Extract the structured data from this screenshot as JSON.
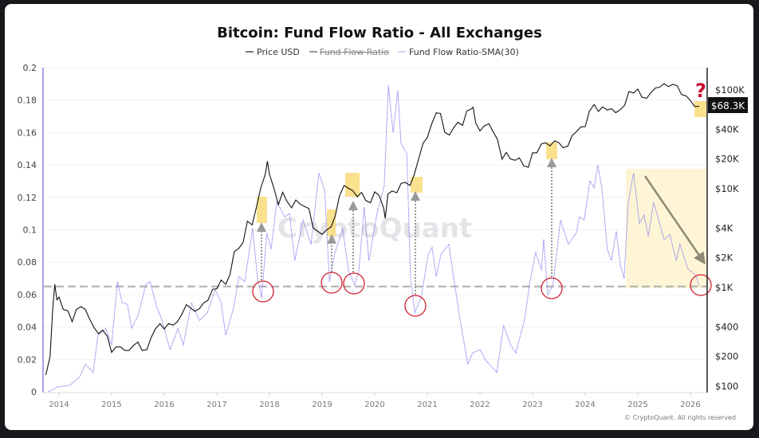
{
  "chart_data": {
    "type": "line",
    "title": "Bitcoin: Fund Flow Ratio - All Exchanges",
    "legend": [
      {
        "name": "Price USD",
        "color": "#222222",
        "hidden": false
      },
      {
        "name": "Fund Flow Ratio",
        "color": "#555555",
        "hidden": true
      },
      {
        "name": "Fund Flow Ratio-SMA(30)",
        "color": "#7b72ea",
        "hidden": false
      }
    ],
    "legend_position": "top-center",
    "watermark": "CryptoQuant",
    "copyright": "© CryptoQuant. All rights reserved",
    "price_label": "$68.3K",
    "annotation_mark": "?",
    "x_ticks": [
      "2014",
      "2015",
      "2016",
      "2017",
      "2018",
      "2019",
      "2020",
      "2021",
      "2022",
      "2023",
      "2024",
      "2025",
      "2026"
    ],
    "y_left": {
      "lim": [
        0,
        0.2
      ],
      "ticks": [
        "0",
        "0.02",
        "0.04",
        "0.06",
        "0.08",
        "0.1",
        "0.12",
        "0.14",
        "0.16",
        "0.18",
        "0.2"
      ]
    },
    "y_right": {
      "scale": "log",
      "ticks": [
        "$100",
        "$200",
        "$400",
        "$1K",
        "$2K",
        "$4K",
        "$10K",
        "$20K",
        "$40K",
        "$100K"
      ],
      "tick_values": [
        100,
        200,
        400,
        1000,
        2000,
        4000,
        10000,
        20000,
        40000,
        100000
      ]
    },
    "threshold_line": 0.065,
    "grid": true,
    "series": [
      {
        "name": "Price USD",
        "axis": "right",
        "points": [
          [
            2013.75,
            130
          ],
          [
            2013.83,
            200
          ],
          [
            2013.88,
            600
          ],
          [
            2013.92,
            1080
          ],
          [
            2013.96,
            750
          ],
          [
            2014.0,
            800
          ],
          [
            2014.08,
            600
          ],
          [
            2014.17,
            580
          ],
          [
            2014.25,
            450
          ],
          [
            2014.33,
            600
          ],
          [
            2014.42,
            640
          ],
          [
            2014.5,
            600
          ],
          [
            2014.58,
            480
          ],
          [
            2014.67,
            390
          ],
          [
            2014.75,
            340
          ],
          [
            2014.83,
            370
          ],
          [
            2014.92,
            320
          ],
          [
            2015.0,
            220
          ],
          [
            2015.08,
            250
          ],
          [
            2015.17,
            250
          ],
          [
            2015.25,
            230
          ],
          [
            2015.33,
            230
          ],
          [
            2015.42,
            260
          ],
          [
            2015.5,
            280
          ],
          [
            2015.58,
            230
          ],
          [
            2015.67,
            235
          ],
          [
            2015.75,
            310
          ],
          [
            2015.83,
            380
          ],
          [
            2015.92,
            430
          ],
          [
            2016.0,
            380
          ],
          [
            2016.08,
            430
          ],
          [
            2016.17,
            415
          ],
          [
            2016.25,
            450
          ],
          [
            2016.33,
            530
          ],
          [
            2016.42,
            670
          ],
          [
            2016.5,
            620
          ],
          [
            2016.58,
            575
          ],
          [
            2016.67,
            610
          ],
          [
            2016.75,
            700
          ],
          [
            2016.83,
            740
          ],
          [
            2016.92,
            960
          ],
          [
            2017.0,
            970
          ],
          [
            2017.08,
            1190
          ],
          [
            2017.17,
            1080
          ],
          [
            2017.25,
            1350
          ],
          [
            2017.33,
            2300
          ],
          [
            2017.42,
            2500
          ],
          [
            2017.5,
            2870
          ],
          [
            2017.58,
            4700
          ],
          [
            2017.67,
            4300
          ],
          [
            2017.75,
            6400
          ],
          [
            2017.83,
            10000
          ],
          [
            2017.92,
            14000
          ],
          [
            2017.96,
            19000
          ],
          [
            2018.0,
            14000
          ],
          [
            2018.08,
            10300
          ],
          [
            2018.17,
            6900
          ],
          [
            2018.25,
            9200
          ],
          [
            2018.33,
            7500
          ],
          [
            2018.42,
            6400
          ],
          [
            2018.5,
            7700
          ],
          [
            2018.58,
            7000
          ],
          [
            2018.67,
            6600
          ],
          [
            2018.75,
            6300
          ],
          [
            2018.83,
            4000
          ],
          [
            2018.92,
            3700
          ],
          [
            2019.0,
            3450
          ],
          [
            2019.08,
            3800
          ],
          [
            2019.17,
            4100
          ],
          [
            2019.25,
            5300
          ],
          [
            2019.33,
            8500
          ],
          [
            2019.42,
            10800
          ],
          [
            2019.5,
            10100
          ],
          [
            2019.58,
            9600
          ],
          [
            2019.67,
            8300
          ],
          [
            2019.75,
            9200
          ],
          [
            2019.83,
            7600
          ],
          [
            2019.92,
            7200
          ],
          [
            2020.0,
            9300
          ],
          [
            2020.08,
            8600
          ],
          [
            2020.17,
            6400
          ],
          [
            2020.2,
            5000
          ],
          [
            2020.25,
            8800
          ],
          [
            2020.33,
            9500
          ],
          [
            2020.42,
            9100
          ],
          [
            2020.5,
            11300
          ],
          [
            2020.58,
            11600
          ],
          [
            2020.67,
            10800
          ],
          [
            2020.75,
            13800
          ],
          [
            2020.83,
            19700
          ],
          [
            2020.92,
            29000
          ],
          [
            2021.0,
            33000
          ],
          [
            2021.08,
            45000
          ],
          [
            2021.17,
            58800
          ],
          [
            2021.25,
            57700
          ],
          [
            2021.33,
            37300
          ],
          [
            2021.42,
            35000
          ],
          [
            2021.5,
            41500
          ],
          [
            2021.58,
            47100
          ],
          [
            2021.67,
            43800
          ],
          [
            2021.75,
            61300
          ],
          [
            2021.83,
            64000
          ],
          [
            2021.87,
            67000
          ],
          [
            2021.92,
            46300
          ],
          [
            2022.0,
            38500
          ],
          [
            2022.08,
            43200
          ],
          [
            2022.17,
            45500
          ],
          [
            2022.25,
            37700
          ],
          [
            2022.33,
            31800
          ],
          [
            2022.42,
            19900
          ],
          [
            2022.5,
            23300
          ],
          [
            2022.58,
            20000
          ],
          [
            2022.67,
            19400
          ],
          [
            2022.75,
            20500
          ],
          [
            2022.83,
            17100
          ],
          [
            2022.92,
            16500
          ],
          [
            2023.0,
            23100
          ],
          [
            2023.08,
            23100
          ],
          [
            2023.17,
            28500
          ],
          [
            2023.25,
            29200
          ],
          [
            2023.33,
            27200
          ],
          [
            2023.42,
            30500
          ],
          [
            2023.5,
            29200
          ],
          [
            2023.58,
            26000
          ],
          [
            2023.67,
            27000
          ],
          [
            2023.75,
            34500
          ],
          [
            2023.83,
            37700
          ],
          [
            2023.92,
            42300
          ],
          [
            2024.0,
            42500
          ],
          [
            2024.08,
            61000
          ],
          [
            2024.17,
            71300
          ],
          [
            2024.25,
            60600
          ],
          [
            2024.33,
            67500
          ],
          [
            2024.42,
            62700
          ],
          [
            2024.5,
            64600
          ],
          [
            2024.58,
            58900
          ],
          [
            2024.67,
            63300
          ],
          [
            2024.75,
            70200
          ],
          [
            2024.83,
            96400
          ],
          [
            2024.92,
            93400
          ],
          [
            2025.0,
            102000
          ],
          [
            2025.08,
            84400
          ],
          [
            2025.17,
            82500
          ],
          [
            2025.25,
            94200
          ],
          [
            2025.33,
            104600
          ],
          [
            2025.42,
            107100
          ],
          [
            2025.5,
            115700
          ],
          [
            2025.58,
            108200
          ],
          [
            2025.67,
            114000
          ],
          [
            2025.75,
            110000
          ],
          [
            2025.83,
            90000
          ],
          [
            2025.92,
            87000
          ],
          [
            2026.0,
            78000
          ],
          [
            2026.08,
            68000
          ],
          [
            2026.17,
            68300
          ]
        ]
      },
      {
        "name": "Fund Flow Ratio-SMA(30)",
        "axis": "left",
        "points": [
          [
            2013.79,
            0.0
          ],
          [
            2013.985,
            0.003
          ],
          [
            2014.2,
            0.004
          ],
          [
            2014.39,
            0.009
          ],
          [
            2014.5,
            0.017
          ],
          [
            2014.65,
            0.012
          ],
          [
            2014.74,
            0.035
          ],
          [
            2014.89,
            0.039
          ],
          [
            2015.0,
            0.029
          ],
          [
            2015.11,
            0.068
          ],
          [
            2015.2,
            0.055
          ],
          [
            2015.3,
            0.054
          ],
          [
            2015.38,
            0.039
          ],
          [
            2015.5,
            0.047
          ],
          [
            2015.65,
            0.066
          ],
          [
            2015.73,
            0.068
          ],
          [
            2015.86,
            0.052
          ],
          [
            2015.95,
            0.045
          ],
          [
            2016.11,
            0.026
          ],
          [
            2016.26,
            0.039
          ],
          [
            2016.36,
            0.029
          ],
          [
            2016.52,
            0.055
          ],
          [
            2016.67,
            0.044
          ],
          [
            2016.82,
            0.049
          ],
          [
            2016.97,
            0.063
          ],
          [
            2017.08,
            0.055
          ],
          [
            2017.17,
            0.035
          ],
          [
            2017.32,
            0.052
          ],
          [
            2017.42,
            0.071
          ],
          [
            2017.53,
            0.068
          ],
          [
            2017.68,
            0.101
          ],
          [
            2017.77,
            0.071
          ],
          [
            2017.85,
            0.058
          ],
          [
            2017.95,
            0.098
          ],
          [
            2018.03,
            0.088
          ],
          [
            2018.14,
            0.117
          ],
          [
            2018.29,
            0.108
          ],
          [
            2018.38,
            0.11
          ],
          [
            2018.48,
            0.081
          ],
          [
            2018.64,
            0.106
          ],
          [
            2018.79,
            0.091
          ],
          [
            2018.94,
            0.135
          ],
          [
            2019.05,
            0.124
          ],
          [
            2019.14,
            0.068
          ],
          [
            2019.24,
            0.085
          ],
          [
            2019.39,
            0.101
          ],
          [
            2019.5,
            0.075
          ],
          [
            2019.62,
            0.066
          ],
          [
            2019.7,
            0.075
          ],
          [
            2019.8,
            0.114
          ],
          [
            2019.89,
            0.081
          ],
          [
            2020.05,
            0.111
          ],
          [
            2020.18,
            0.127
          ],
          [
            2020.26,
            0.189
          ],
          [
            2020.35,
            0.16
          ],
          [
            2020.44,
            0.186
          ],
          [
            2020.5,
            0.153
          ],
          [
            2020.61,
            0.147
          ],
          [
            2020.68,
            0.071
          ],
          [
            2020.76,
            0.049
          ],
          [
            2020.88,
            0.058
          ],
          [
            2021.02,
            0.085
          ],
          [
            2021.09,
            0.089
          ],
          [
            2021.17,
            0.071
          ],
          [
            2021.26,
            0.085
          ],
          [
            2021.41,
            0.091
          ],
          [
            2021.48,
            0.075
          ],
          [
            2021.62,
            0.045
          ],
          [
            2021.77,
            0.017
          ],
          [
            2021.86,
            0.024
          ],
          [
            2022.0,
            0.026
          ],
          [
            2022.12,
            0.019
          ],
          [
            2022.32,
            0.012
          ],
          [
            2022.45,
            0.041
          ],
          [
            2022.58,
            0.029
          ],
          [
            2022.68,
            0.024
          ],
          [
            2022.77,
            0.035
          ],
          [
            2022.85,
            0.045
          ],
          [
            2022.95,
            0.068
          ],
          [
            2023.06,
            0.086
          ],
          [
            2023.17,
            0.075
          ],
          [
            2023.21,
            0.094
          ],
          [
            2023.29,
            0.06
          ],
          [
            2023.39,
            0.066
          ],
          [
            2023.53,
            0.106
          ],
          [
            2023.68,
            0.091
          ],
          [
            2023.83,
            0.098
          ],
          [
            2023.89,
            0.108
          ],
          [
            2023.98,
            0.106
          ],
          [
            2024.09,
            0.13
          ],
          [
            2024.17,
            0.126
          ],
          [
            2024.24,
            0.14
          ],
          [
            2024.32,
            0.125
          ],
          [
            2024.42,
            0.088
          ],
          [
            2024.5,
            0.081
          ],
          [
            2024.59,
            0.099
          ],
          [
            2024.67,
            0.078
          ],
          [
            2024.74,
            0.07
          ],
          [
            2024.82,
            0.117
          ],
          [
            2024.92,
            0.135
          ],
          [
            2025.03,
            0.104
          ],
          [
            2025.12,
            0.109
          ],
          [
            2025.2,
            0.096
          ],
          [
            2025.3,
            0.117
          ],
          [
            2025.5,
            0.094
          ],
          [
            2025.61,
            0.097
          ],
          [
            2025.73,
            0.081
          ],
          [
            2025.8,
            0.091
          ],
          [
            2025.95,
            0.076
          ],
          [
            2026.1,
            0.072
          ],
          [
            2026.17,
            0.065
          ]
        ]
      }
    ]
  }
}
